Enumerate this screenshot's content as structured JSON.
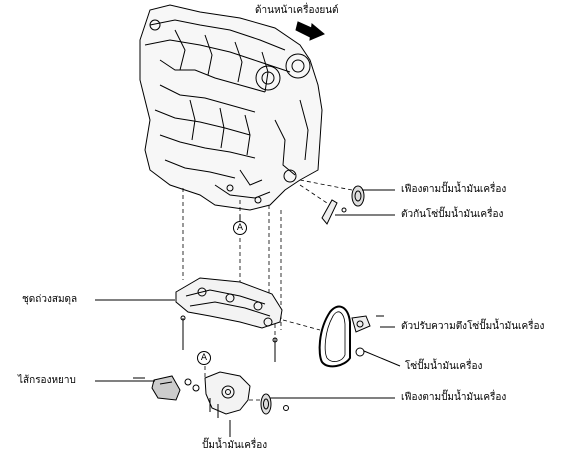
{
  "labels": {
    "engine_front": "ด้านหน้าเครื่องยนต์",
    "oil_pump_sprocket_top": "เฟืองตามปั๊มน้ำมันเครื่อง",
    "oil_pump_chain_damper": "ตัวกันโซ่ปั๊มน้ำมันเครื่อง",
    "balancer_assembly": "ชุดถ่วงสมดุล",
    "oil_pump_chain_tensioner": "ตัวปรับความตึงโซ่ปั๊มน้ำมันเครื่อง",
    "oil_pump_chain": "โซ่ปั๊มน้ำมันเครื่อง",
    "oil_strainer": "ไส้กรองหยาบ",
    "oil_pump_sprocket_bottom": "เฟืองตามปั๊มน้ำมันเครื่อง",
    "oil_pump": "ปั๊มน้ำมันเครื่อง"
  },
  "callouts": {
    "a_top": "A",
    "a_bottom": "A"
  }
}
